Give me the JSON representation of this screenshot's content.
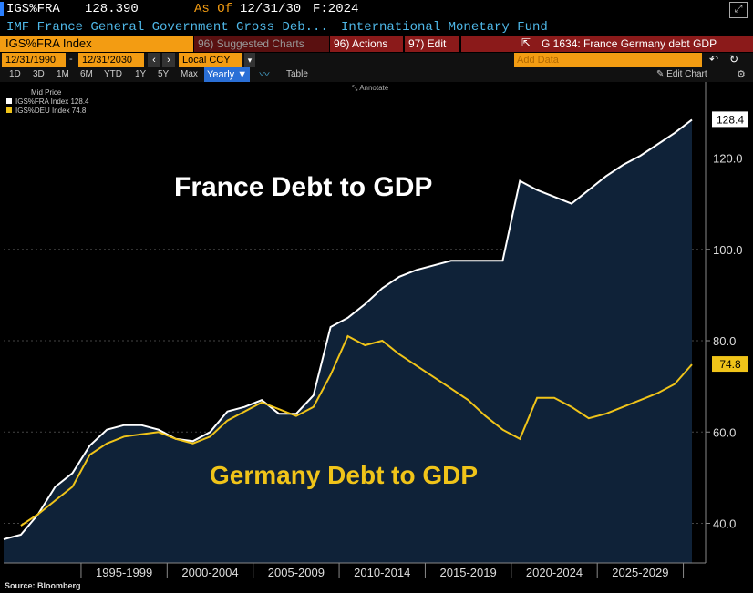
{
  "header": {
    "ticker": "IGS%FRA",
    "price": "128.390",
    "asof_label": "As Of",
    "asof_date": "12/31/30",
    "freq": "F:2024",
    "desc": "IMF France General Government Gross Deb...",
    "source_org": "International Monetary Fund",
    "index_name": "IGS%FRA Index",
    "suggested": "96) Suggested Charts",
    "actions": "96) Actions",
    "edit": "97) Edit",
    "chart_title": "G 1634: France Germany debt GDP"
  },
  "toolbar": {
    "start_date": "12/31/1990",
    "end_date": "12/31/2030",
    "currency": "Local CCY",
    "timeframes": [
      "1D",
      "3D",
      "1M",
      "6M",
      "YTD",
      "1Y",
      "5Y",
      "Max"
    ],
    "period": "Yearly ▼",
    "table": "Table",
    "add_data": "Add Data",
    "edit_chart": "Edit Chart",
    "annotate": "Annotate"
  },
  "legend": {
    "heading": "Mid Price",
    "items": [
      "IGS%FRA Index 128.4",
      "IGS%DEU Index 74.8"
    ]
  },
  "footer": {
    "source": "Source: Bloomberg"
  },
  "colors": {
    "france": "#ffffff",
    "germany": "#f0c419",
    "area": "#0f2238"
  },
  "chart_data": {
    "type": "area",
    "title": "France Debt to GDP",
    "title2": "Germany Debt to GDP",
    "x": [
      1990,
      1991,
      1992,
      1993,
      1994,
      1995,
      1996,
      1997,
      1998,
      1999,
      2000,
      2001,
      2002,
      2003,
      2004,
      2005,
      2006,
      2007,
      2008,
      2009,
      2010,
      2011,
      2012,
      2013,
      2014,
      2015,
      2016,
      2017,
      2018,
      2019,
      2020,
      2021,
      2022,
      2023,
      2024,
      2025,
      2026,
      2027,
      2028,
      2029,
      2030
    ],
    "series": [
      {
        "name": "France",
        "color": "#ffffff",
        "values": [
          36.5,
          37.5,
          42,
          48,
          51,
          57,
          60.5,
          61.5,
          61.5,
          60.5,
          58.5,
          58,
          60,
          64.5,
          65.5,
          67,
          64,
          64,
          68,
          83,
          85,
          88,
          91.5,
          94,
          95.5,
          96.5,
          97.5,
          97.5,
          97.5,
          97.5,
          115,
          113,
          111.5,
          110,
          113,
          116,
          118.5,
          120.5,
          123,
          125.5,
          128.4
        ]
      },
      {
        "name": "Germany",
        "color": "#f0c419",
        "values": [
          null,
          39.5,
          42,
          45,
          48,
          55,
          57.5,
          59,
          59.5,
          60,
          58.5,
          57.5,
          59,
          62.5,
          64.5,
          66.5,
          65,
          63.5,
          65.5,
          72.5,
          81,
          79,
          80,
          77,
          74.5,
          72,
          69.5,
          67,
          63.5,
          60.5,
          58.5,
          67.5,
          67.5,
          65.5,
          63,
          64,
          65.5,
          67,
          68.5,
          70.5,
          74.8
        ]
      }
    ],
    "xticks": [
      "1995-1999",
      "2000-2004",
      "2005-2009",
      "2010-2014",
      "2015-2019",
      "2020-2024",
      "2025-2029"
    ],
    "yticks": [
      40.0,
      60.0,
      80.0,
      100.0,
      120.0
    ],
    "ylim": [
      32,
      140
    ],
    "last_labels": [
      "128.4",
      "74.8"
    ]
  }
}
